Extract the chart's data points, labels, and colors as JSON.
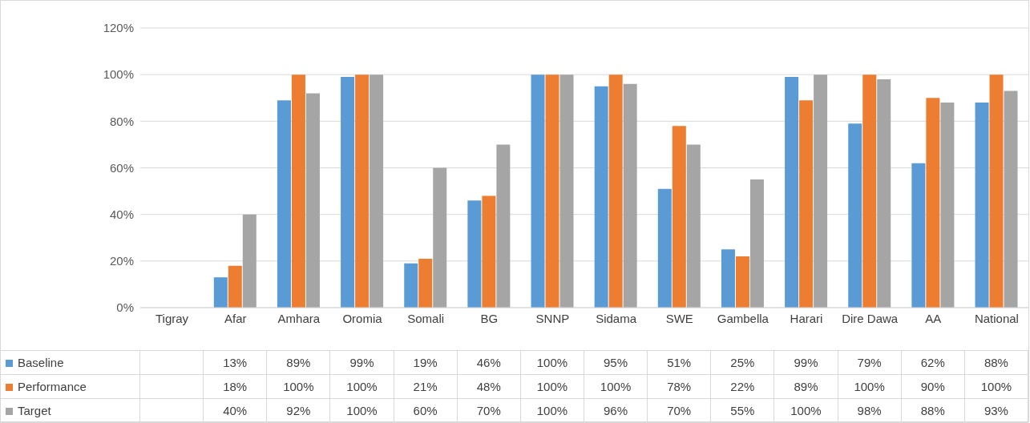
{
  "chart_data": {
    "type": "bar",
    "categories": [
      "Tigray",
      "Afar",
      "Amhara",
      "Oromia",
      "Somali",
      "BG",
      "SNNP",
      "Sidama",
      "SWE",
      "Gambella",
      "Harari",
      "Dire Dawa",
      "AA",
      "National"
    ],
    "series": [
      {
        "name": "Baseline",
        "color": "#5b9bd5",
        "values": [
          null,
          13,
          89,
          99,
          19,
          46,
          100,
          95,
          51,
          25,
          99,
          79,
          62,
          88
        ],
        "value_labels": [
          null,
          "13%",
          "89%",
          "99%",
          "19%",
          "46%",
          "100%",
          "95%",
          "51%",
          "25%",
          "99%",
          "79%",
          "62%",
          "88%"
        ]
      },
      {
        "name": "Performance",
        "color": "#ed7d31",
        "values": [
          null,
          18,
          100,
          100,
          21,
          48,
          100,
          100,
          78,
          22,
          89,
          100,
          90,
          100
        ],
        "value_labels": [
          null,
          "18%",
          "100%",
          "100%",
          "21%",
          "48%",
          "100%",
          "100%",
          "78%",
          "22%",
          "89%",
          "100%",
          "90%",
          "100%"
        ]
      },
      {
        "name": "Target",
        "color": "#a5a5a5",
        "values": [
          null,
          40,
          92,
          100,
          60,
          70,
          100,
          96,
          70,
          55,
          100,
          98,
          88,
          93
        ],
        "value_labels": [
          null,
          "40%",
          "92%",
          "100%",
          "60%",
          "70%",
          "100%",
          "96%",
          "70%",
          "55%",
          "100%",
          "98%",
          "88%",
          "93%"
        ]
      }
    ],
    "ylim": [
      0,
      120
    ],
    "yticks": [
      {
        "value": 0,
        "label": "0%"
      },
      {
        "value": 20,
        "label": "20%"
      },
      {
        "value": 40,
        "label": "40%"
      },
      {
        "value": 60,
        "label": "60%"
      },
      {
        "value": 80,
        "label": "80%"
      },
      {
        "value": 100,
        "label": "100%"
      },
      {
        "value": 120,
        "label": "120%"
      }
    ],
    "grid": "y",
    "legend": "bottom"
  }
}
